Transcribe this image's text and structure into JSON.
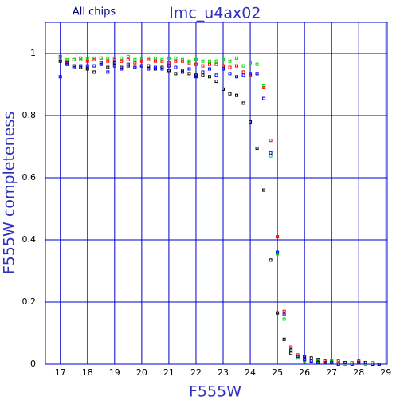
{
  "chart_data": {
    "type": "scatter",
    "title": "lmc_u4ax02",
    "subtitle": "All chips",
    "x_label": "F555W",
    "y_label": "F555W completeness",
    "x": [
      17,
      17.25,
      17.5,
      17.75,
      18,
      18.25,
      18.5,
      18.75,
      19,
      19.25,
      19.5,
      19.75,
      20,
      20.25,
      20.5,
      20.75,
      21,
      21.25,
      21.5,
      21.75,
      22,
      22.25,
      22.5,
      22.75,
      23,
      23.25,
      23.5,
      23.75,
      24,
      24.25,
      24.5,
      24.75,
      25,
      25.25,
      25.5,
      25.75,
      26,
      26.25,
      26.5,
      26.75,
      27,
      27.25,
      27.5,
      27.75,
      28,
      28.25,
      28.5,
      28.75
    ],
    "series": [
      {
        "color": "#000000",
        "values": [
          0.975,
          0.965,
          0.96,
          0.955,
          0.95,
          0.94,
          0.965,
          0.955,
          0.97,
          0.955,
          0.96,
          0.955,
          0.96,
          0.96,
          0.95,
          0.955,
          0.945,
          0.935,
          0.94,
          0.935,
          0.93,
          0.93,
          0.925,
          0.91,
          0.885,
          0.87,
          0.865,
          0.84,
          0.78,
          0.695,
          0.56,
          0.335,
          0.165,
          0.08,
          0.035,
          0.025,
          0.025,
          0.02,
          0.015,
          0.01,
          0.01,
          0.005,
          0.005,
          0.005,
          0.005,
          0.005,
          0,
          0
        ]
      },
      {
        "color": "#ff0000",
        "values": [
          0.99,
          0.975,
          0.98,
          0.985,
          0.975,
          0.98,
          0.985,
          0.975,
          0.98,
          0.975,
          0.98,
          0.97,
          0.975,
          0.98,
          0.975,
          0.975,
          0.97,
          0.975,
          0.975,
          0.97,
          0.965,
          0.96,
          0.965,
          0.965,
          0.96,
          0.955,
          0.96,
          0.94,
          0.93,
          0.935,
          0.89,
          0.72,
          0.41,
          0.17,
          0.055,
          0.03,
          0.015,
          0.01,
          0.01,
          0.01,
          0.005,
          0.01,
          0.005,
          0.005,
          0.01,
          0.005,
          0.005,
          0
        ]
      },
      {
        "color": "#00dd00",
        "values": [
          0.985,
          0.98,
          0.98,
          0.98,
          0.985,
          0.985,
          0.985,
          0.985,
          0.985,
          0.985,
          0.99,
          0.98,
          0.985,
          0.985,
          0.985,
          0.98,
          0.985,
          0.985,
          0.98,
          0.975,
          0.98,
          0.975,
          0.975,
          0.975,
          0.98,
          0.975,
          0.985,
          0.96,
          0.97,
          0.965,
          0.895,
          0.67,
          0.355,
          0.145,
          0.05,
          0.02,
          0.01,
          0.005,
          0.01,
          0.005,
          0.01,
          0.005,
          0,
          0.005,
          0.005,
          0,
          0.005,
          0
        ]
      },
      {
        "color": "#0000ff",
        "values": [
          0.925,
          0.97,
          0.955,
          0.96,
          0.96,
          0.96,
          0.97,
          0.94,
          0.96,
          0.95,
          0.965,
          0.955,
          0.96,
          0.95,
          0.955,
          0.95,
          0.96,
          0.955,
          0.945,
          0.95,
          0.925,
          0.94,
          0.95,
          0.93,
          0.95,
          0.935,
          0.925,
          0.93,
          0.935,
          0.935,
          0.855,
          0.68,
          0.36,
          0.16,
          0.045,
          0.025,
          0.015,
          0.01,
          0.005,
          0.005,
          0.005,
          0,
          0.005,
          0,
          0.005,
          0.005,
          0,
          0
        ]
      }
    ],
    "xlim": [
      16.45,
      29.05
    ],
    "ylim": [
      0,
      1.1
    ],
    "xticks": [
      17,
      18,
      19,
      20,
      21,
      22,
      23,
      24,
      25,
      26,
      27,
      28,
      29
    ],
    "yticks": [
      0,
      0.2,
      0.4,
      0.6,
      0.8,
      1
    ],
    "grid": true,
    "axis_color": "#0000cc"
  }
}
